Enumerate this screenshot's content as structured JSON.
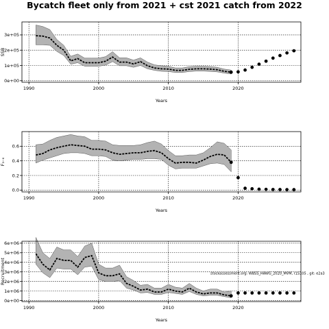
{
  "title": "Bycatch fleet only from 2021 + cst 2021 catch from 2022",
  "chart_data": [
    {
      "type": "line",
      "title": "",
      "xlabel": "Years",
      "ylabel": "SSB",
      "xlim": [
        1989,
        2029
      ],
      "ylim": [
        -10000,
        385000
      ],
      "grid": true,
      "x_ticks": [
        1990,
        2000,
        2010,
        2020
      ],
      "y_ticks": [
        {
          "value": 0,
          "label": "0e+00"
        },
        {
          "value": 100000,
          "label": "1e+05"
        },
        {
          "value": 200000,
          "label": "2e+05"
        },
        {
          "value": 300000,
          "label": "3e+05"
        }
      ],
      "series": [
        {
          "role": "estimate",
          "x": [
            1991,
            1992,
            1993,
            1994,
            1995,
            1996,
            1997,
            1998,
            1999,
            2000,
            2001,
            2002,
            2003,
            2004,
            2005,
            2006,
            2007,
            2008,
            2009,
            2010,
            2011,
            2012,
            2013,
            2014,
            2015,
            2016,
            2017,
            2018,
            2019
          ],
          "values": [
            295000,
            292000,
            280000,
            232000,
            200000,
            130000,
            145000,
            118000,
            118000,
            118000,
            128000,
            155000,
            122000,
            122000,
            110000,
            125000,
            98000,
            84000,
            78000,
            76000,
            68000,
            68000,
            75000,
            78000,
            78000,
            76000,
            72000,
            62000,
            56000
          ],
          "upper": [
            365000,
            355000,
            335000,
            270000,
            232000,
            160000,
            175000,
            148000,
            148000,
            148000,
            158000,
            190000,
            150000,
            150000,
            135000,
            150000,
            122000,
            104000,
            98000,
            94000,
            84000,
            84000,
            92000,
            95000,
            95000,
            93000,
            88000,
            76000,
            70000
          ],
          "lower": [
            235000,
            235000,
            232000,
            192000,
            165000,
            108000,
            118000,
            95000,
            95000,
            95000,
            102000,
            125000,
            98000,
            98000,
            88000,
            100000,
            78000,
            68000,
            62000,
            60000,
            54000,
            54000,
            60000,
            63000,
            63000,
            61000,
            58000,
            50000,
            44000
          ]
        },
        {
          "role": "projection",
          "x": [
            2019,
            2020,
            2021,
            2022,
            2023,
            2024,
            2025,
            2026,
            2027,
            2028
          ],
          "values": [
            56000,
            58000,
            70000,
            88000,
            108000,
            128000,
            148000,
            165000,
            182000,
            196000
          ]
        }
      ]
    },
    {
      "type": "line",
      "title": "",
      "xlabel": "Years",
      "ylabel": "F₃₋₆",
      "xlim": [
        1989,
        2029
      ],
      "ylim": [
        -0.025,
        0.8
      ],
      "grid": true,
      "x_ticks": [
        1990,
        2000,
        2010,
        2020
      ],
      "y_ticks": [
        {
          "value": 0,
          "label": "0.0"
        },
        {
          "value": 0.2,
          "label": "0.2"
        },
        {
          "value": 0.4,
          "label": "0.4"
        },
        {
          "value": 0.6,
          "label": "0.6"
        }
      ],
      "series": [
        {
          "role": "estimate",
          "x": [
            1991,
            1992,
            1993,
            1994,
            1995,
            1996,
            1997,
            1998,
            1999,
            2000,
            2001,
            2002,
            2003,
            2004,
            2005,
            2006,
            2007,
            2008,
            2009,
            2010,
            2011,
            2012,
            2013,
            2014,
            2015,
            2016,
            2017,
            2018,
            2019
          ],
          "values": [
            0.48,
            0.5,
            0.55,
            0.58,
            0.6,
            0.62,
            0.61,
            0.6,
            0.56,
            0.56,
            0.55,
            0.51,
            0.49,
            0.5,
            0.51,
            0.51,
            0.53,
            0.54,
            0.51,
            0.43,
            0.37,
            0.38,
            0.38,
            0.37,
            0.41,
            0.46,
            0.49,
            0.48,
            0.38
          ],
          "upper": [
            0.62,
            0.63,
            0.68,
            0.72,
            0.74,
            0.76,
            0.74,
            0.73,
            0.68,
            0.68,
            0.67,
            0.62,
            0.61,
            0.61,
            0.61,
            0.62,
            0.65,
            0.67,
            0.63,
            0.54,
            0.47,
            0.47,
            0.48,
            0.48,
            0.51,
            0.58,
            0.66,
            0.64,
            0.55
          ],
          "lower": [
            0.37,
            0.41,
            0.44,
            0.47,
            0.5,
            0.51,
            0.51,
            0.5,
            0.47,
            0.47,
            0.46,
            0.41,
            0.4,
            0.41,
            0.42,
            0.42,
            0.43,
            0.43,
            0.42,
            0.34,
            0.29,
            0.3,
            0.3,
            0.3,
            0.33,
            0.36,
            0.37,
            0.35,
            0.25
          ]
        },
        {
          "role": "projection",
          "x": [
            2019,
            2020,
            2021,
            2022,
            2023,
            2024,
            2025,
            2026,
            2027,
            2028
          ],
          "values": [
            0.38,
            0.17,
            0.025,
            0.018,
            0.012,
            0.01,
            0.008,
            0.007,
            0.006,
            0.006
          ]
        }
      ]
    },
    {
      "type": "line",
      "title": "",
      "xlabel": "Years",
      "ylabel": "Recruitment",
      "xlim": [
        1989,
        2029
      ],
      "ylim": [
        -100000,
        6200000
      ],
      "grid": true,
      "x_ticks": [
        1990,
        2000,
        2010,
        2020
      ],
      "y_ticks": [
        {
          "value": 0,
          "label": "0e+00"
        },
        {
          "value": 1000000,
          "label": "1e+06"
        },
        {
          "value": 2000000,
          "label": "2e+06"
        },
        {
          "value": 3000000,
          "label": "3e+06"
        },
        {
          "value": 4000000,
          "label": "4e+06"
        },
        {
          "value": 5000000,
          "label": "5e+06"
        },
        {
          "value": 6000000,
          "label": "6e+06"
        }
      ],
      "annotation": "stockassessment.org: WBSS_HAWG_2020_MVM, r1S105 , git: e2a3",
      "series": [
        {
          "role": "estimate",
          "x": [
            1991,
            1992,
            1993,
            1994,
            1995,
            1996,
            1997,
            1998,
            1999,
            2000,
            2001,
            2002,
            2003,
            2004,
            2005,
            2006,
            2007,
            2008,
            2009,
            2010,
            2011,
            2012,
            2013,
            2014,
            2015,
            2016,
            2017,
            2018,
            2019
          ],
          "values": [
            4900000,
            3800000,
            3200000,
            4400000,
            4200000,
            4200000,
            3500000,
            4500000,
            4700000,
            2900000,
            2600000,
            2600000,
            2800000,
            1800000,
            1500000,
            1100000,
            1200000,
            900000,
            900000,
            1200000,
            1000000,
            900000,
            1300000,
            900000,
            700000,
            800000,
            800000,
            600000,
            500000
          ],
          "upper": [
            6600000,
            5000000,
            4400000,
            5600000,
            5300000,
            5300000,
            4600000,
            5700000,
            6000000,
            3800000,
            3400000,
            3400000,
            3700000,
            2500000,
            2100000,
            1600000,
            1700000,
            1300000,
            1300000,
            1700000,
            1400000,
            1300000,
            1800000,
            1300000,
            1000000,
            1200000,
            1200000,
            900000,
            1000000
          ],
          "lower": [
            3800000,
            2900000,
            2400000,
            3400000,
            3300000,
            3300000,
            2700000,
            3500000,
            3600000,
            2200000,
            2000000,
            2000000,
            2100000,
            1300000,
            1100000,
            800000,
            850000,
            650000,
            650000,
            850000,
            750000,
            650000,
            950000,
            650000,
            500000,
            560000,
            560000,
            420000,
            300000
          ]
        },
        {
          "role": "projection",
          "x": [
            2019,
            2020,
            2021,
            2022,
            2023,
            2024,
            2025,
            2026,
            2027,
            2028
          ],
          "values": [
            500000,
            800000,
            800000,
            800000,
            800000,
            800000,
            800000,
            800000,
            800000,
            800000
          ]
        }
      ]
    }
  ]
}
